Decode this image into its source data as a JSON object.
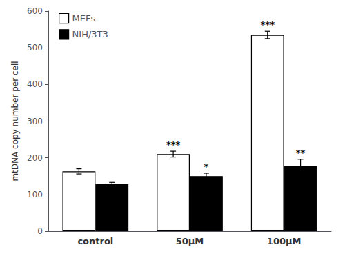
{
  "chart_data": {
    "type": "bar",
    "categories": [
      "control",
      "50μM",
      "100μM"
    ],
    "series": [
      {
        "name": "MEFs",
        "color": "#ffffff",
        "values": [
          163,
          210,
          535
        ],
        "errors": [
          7,
          8,
          10
        ],
        "annotations": [
          null,
          "***",
          "***"
        ]
      },
      {
        "name": "NIH/3T3",
        "color": "#000000",
        "values": [
          128,
          150,
          178
        ],
        "errors": [
          5,
          8,
          18
        ],
        "annotations": [
          null,
          "*",
          "**"
        ]
      }
    ],
    "ylabel": "mtDNA copy number per cell",
    "ylim": [
      0,
      600
    ],
    "yticks": [
      0,
      100,
      200,
      300,
      400,
      500,
      600
    ],
    "legend": "upper left",
    "grid": false
  }
}
